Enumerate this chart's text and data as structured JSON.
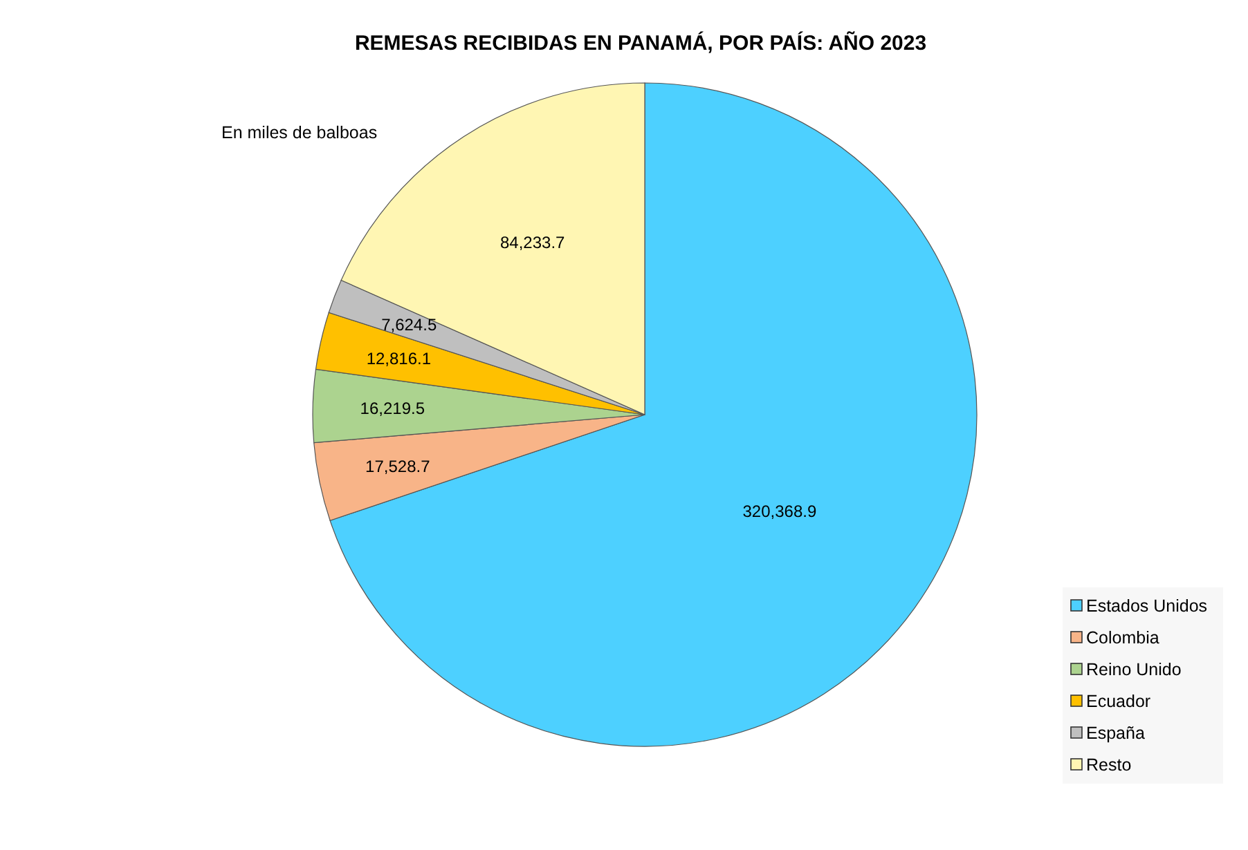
{
  "chart_data": {
    "type": "pie",
    "title": "REMESAS RECIBIDAS EN PANAMÁ, POR PAÍS: AÑO 2023",
    "annotations": [
      "En miles de balboas"
    ],
    "categories": [
      "Estados Unidos",
      "Colombia",
      "Reino Unido",
      "Ecuador",
      "España",
      "Resto"
    ],
    "values": [
      320368.9,
      17528.7,
      16219.5,
      12816.1,
      7624.5,
      84233.7
    ],
    "value_labels": [
      "320,368.9",
      "17,528.7",
      "16,219.5",
      "12,816.1",
      "7,624.5",
      "84,233.7"
    ],
    "colors": [
      "#4dd0ff",
      "#f8b488",
      "#acd38f",
      "#ffc000",
      "#bfbfbf",
      "#fff6b3"
    ],
    "legend": "bottom right"
  }
}
